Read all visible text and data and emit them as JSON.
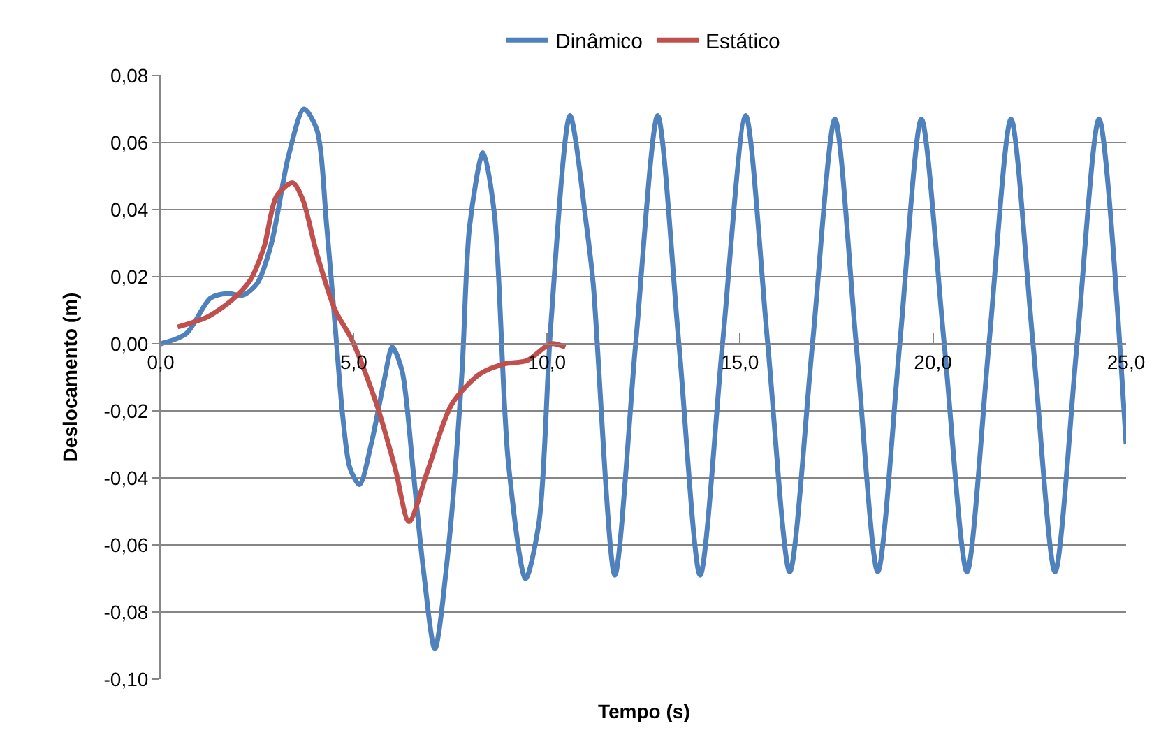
{
  "chart_data": {
    "type": "line",
    "xlabel": "Tempo (s)",
    "ylabel": "Deslocamento (m)",
    "xlim": [
      0,
      25
    ],
    "ylim": [
      -0.1,
      0.08
    ],
    "xticks": [
      {
        "value": 0,
        "label": "0,0"
      },
      {
        "value": 5,
        "label": "5,0"
      },
      {
        "value": 10,
        "label": "10,0"
      },
      {
        "value": 15,
        "label": "15,0"
      },
      {
        "value": 20,
        "label": "20,0"
      },
      {
        "value": 25,
        "label": "25,0"
      }
    ],
    "yticks": [
      {
        "value": -0.1,
        "label": "-0,10"
      },
      {
        "value": -0.08,
        "label": "-0,08"
      },
      {
        "value": -0.06,
        "label": "-0,06"
      },
      {
        "value": -0.04,
        "label": "-0,04"
      },
      {
        "value": -0.02,
        "label": "-0,02"
      },
      {
        "value": 0,
        "label": "0,00"
      },
      {
        "value": 0.02,
        "label": "0,02"
      },
      {
        "value": 0.04,
        "label": "0,04"
      },
      {
        "value": 0.06,
        "label": "0,06"
      },
      {
        "value": 0.08,
        "label": "0,08"
      }
    ],
    "grid": "y",
    "legend": "top",
    "marker": "none",
    "line_style": "solid",
    "series": [
      {
        "name": "Dinâmico",
        "color": "#4f81bd",
        "x": [
          0,
          0.66,
          1.29,
          1.73,
          2.13,
          2.5,
          2.87,
          3.31,
          3.71,
          4.04,
          4.3,
          4.52,
          4.71,
          4.9,
          5.15,
          5.45,
          5.77,
          6.0,
          6.25,
          6.54,
          6.8,
          7.1,
          7.46,
          7.8,
          8.0,
          8.35,
          8.64,
          9.0,
          9.45,
          9.8,
          10.1,
          10.6,
          11.03,
          11.2,
          11.76,
          12.3,
          12.87,
          13.42,
          13.97,
          14.55,
          15.15,
          15.72,
          16.29,
          16.88,
          17.46,
          18.01,
          18.57,
          19.14,
          19.7,
          20.29,
          20.88,
          21.45,
          22.02,
          22.59,
          23.16,
          23.73,
          24.3,
          25.0
        ],
        "values": [
          0,
          0.003,
          0.0136,
          0.015,
          0.0145,
          0.018,
          0.03,
          0.056,
          0.07,
          0.064,
          0.035,
          0.005,
          -0.021,
          -0.037,
          -0.042,
          -0.03,
          -0.012,
          -0.001,
          -0.008,
          -0.038,
          -0.067,
          -0.091,
          -0.06,
          -0.009,
          0.035,
          0.057,
          0.039,
          -0.035,
          -0.07,
          -0.053,
          0.005,
          0.068,
          0.035,
          0.018,
          -0.069,
          0,
          0.068,
          0,
          -0.069,
          0,
          0.068,
          0,
          -0.068,
          0,
          0.067,
          0,
          -0.068,
          0,
          0.067,
          0,
          -0.068,
          0,
          0.067,
          0,
          -0.068,
          0,
          0.067,
          -0.03
        ]
      },
      {
        "name": "Estático",
        "color": "#c0504d",
        "x": [
          0.44,
          1.21,
          1.84,
          2.32,
          2.68,
          3.0,
          3.42,
          3.68,
          4.04,
          4.52,
          4.96,
          5.59,
          6.07,
          6.43,
          6.91,
          7.54,
          8.27,
          8.9,
          9.49,
          10.1,
          10.48
        ],
        "values": [
          0.005,
          0.008,
          0.013,
          0.019,
          0.029,
          0.044,
          0.048,
          0.043,
          0.027,
          0.01,
          0.001,
          -0.018,
          -0.037,
          -0.053,
          -0.038,
          -0.018,
          -0.009,
          -0.006,
          -0.005,
          0.0,
          -0.001
        ]
      }
    ]
  }
}
